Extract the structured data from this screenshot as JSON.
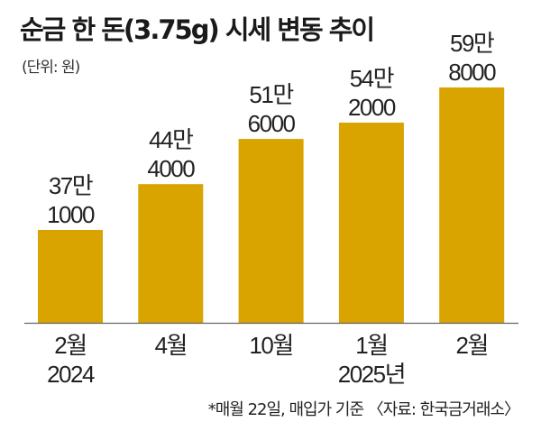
{
  "chart_data": {
    "type": "bar",
    "title": "순금 한 돈(3.75g) 시세 변동 추이",
    "unit_label": "(단위: 원)",
    "categories": [
      "2월",
      "4월",
      "10월",
      "1월",
      "2월"
    ],
    "category_sublabels": [
      "2024",
      "",
      "",
      "2025년",
      ""
    ],
    "values": [
      371000,
      444000,
      516000,
      542000,
      598000
    ],
    "data_labels": [
      [
        "37만",
        "1000"
      ],
      [
        "44만",
        "4000"
      ],
      [
        "51만",
        "6000"
      ],
      [
        "54만",
        "2000"
      ],
      [
        "59만",
        "8000"
      ]
    ],
    "ylim": [
      223000,
      598000
    ],
    "grid": false,
    "bar_color": "#d9a300",
    "note": "*매월 22일, 매입가 기준 〈자료: 한국금거래소〉"
  }
}
